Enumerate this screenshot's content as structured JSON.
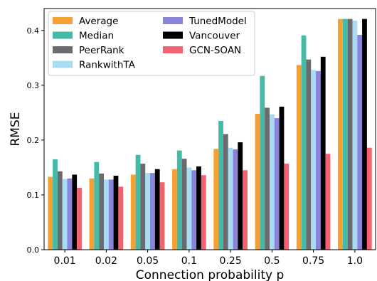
{
  "chart_data": {
    "type": "bar",
    "xlabel": "Connection probability p",
    "ylabel": "RMSE",
    "ylim": [
      0,
      0.44
    ],
    "yticks": [
      0.0,
      0.1,
      0.2,
      0.3,
      0.4
    ],
    "ytick_labels": [
      "0.0",
      "0.1",
      "0.2",
      "0.3",
      "0.4"
    ],
    "categories": [
      "0.01",
      "0.02",
      "0.05",
      "0.1",
      "0.25",
      "0.5",
      "0.75",
      "1.0"
    ],
    "grid": false,
    "legend_position": "top-left",
    "series": [
      {
        "name": "Average",
        "color": "#F5A033",
        "values": [
          0.133,
          0.13,
          0.137,
          0.147,
          0.184,
          0.248,
          0.337,
          0.421
        ]
      },
      {
        "name": "Median",
        "color": "#45BBA7",
        "values": [
          0.165,
          0.16,
          0.173,
          0.181,
          0.235,
          0.317,
          0.391,
          0.421
        ]
      },
      {
        "name": "PeerRank",
        "color": "#6B6B6F",
        "values": [
          0.143,
          0.139,
          0.157,
          0.166,
          0.211,
          0.259,
          0.347,
          0.421
        ]
      },
      {
        "name": "RankwithTA",
        "color": "#A7DCF2",
        "values": [
          0.129,
          0.128,
          0.14,
          0.15,
          0.186,
          0.247,
          0.328,
          0.418
        ]
      },
      {
        "name": "TunedModel",
        "color": "#8A84DC",
        "values": [
          0.13,
          0.128,
          0.14,
          0.145,
          0.183,
          0.24,
          0.326,
          0.392
        ]
      },
      {
        "name": "Vancouver",
        "color": "#000000",
        "values": [
          0.137,
          0.135,
          0.147,
          0.152,
          0.196,
          0.261,
          0.352,
          0.421
        ]
      },
      {
        "name": "GCN-SOAN",
        "color": "#F5626F",
        "values": [
          0.113,
          0.115,
          0.123,
          0.136,
          0.145,
          0.157,
          0.175,
          0.186
        ]
      }
    ]
  }
}
